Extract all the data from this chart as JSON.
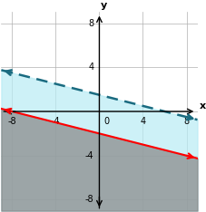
{
  "xlim": [
    -9,
    9
  ],
  "ylim": [
    -9,
    9
  ],
  "xticks": [
    -8,
    -4,
    4,
    8
  ],
  "yticks": [
    -8,
    -4,
    4,
    8
  ],
  "x0label": "0",
  "line1_slope": -0.25,
  "line1_intercept": -2,
  "line1_color": "#ff0000",
  "line1_shade_color": "#8c8c8c",
  "line1_shade_alpha": 0.75,
  "line2_slope": -0.25,
  "line2_intercept": 1.5,
  "line2_color": "#1a6b80",
  "line2_shade_color": "#b8ecf5",
  "line2_shade_alpha": 0.7,
  "grid_color": "#b0b0b0",
  "background_color": "#ffffff",
  "xlabel": "x",
  "ylabel": "y",
  "font_size": 7,
  "line_width": 1.5,
  "dash_pattern": [
    5,
    3
  ],
  "axis_lw": 1.0
}
